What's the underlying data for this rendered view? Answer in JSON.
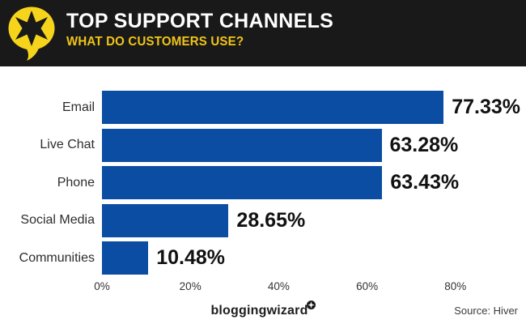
{
  "header": {
    "title": "TOP SUPPORT CHANNELS",
    "subtitle": "WHAT DO CUSTOMERS USE?",
    "icon": "speech-bubble-star-icon",
    "colors": {
      "background": "#191919",
      "title": "#ffffff",
      "subtitle": "#f0c419",
      "bubble_yellow": "#f6d41c"
    }
  },
  "chart_data": {
    "type": "bar",
    "orientation": "horizontal",
    "title": "Top Support Channels - What do customers use?",
    "categories": [
      "Email",
      "Live Chat",
      "Phone",
      "Social Media",
      "Communities"
    ],
    "values": [
      77.33,
      63.28,
      63.43,
      28.65,
      10.48
    ],
    "value_labels": [
      "77.33%",
      "63.28%",
      "63.43%",
      "28.65%",
      "10.48%"
    ],
    "xlabel": "",
    "ylabel": "",
    "xticks": [
      "0%",
      "20%",
      "40%",
      "60%",
      "80%"
    ],
    "xtick_values": [
      0,
      20,
      40,
      60,
      80
    ],
    "xlim": [
      0,
      88
    ],
    "grid": false,
    "legend": false,
    "bar_color": "#0b4da2",
    "value_label_color": "#111111",
    "category_label_color": "#2d2d2d"
  },
  "footer": {
    "brand": "bloggingwizard",
    "brand_badge": "star-badge-icon",
    "source": "Source: Hiver"
  }
}
